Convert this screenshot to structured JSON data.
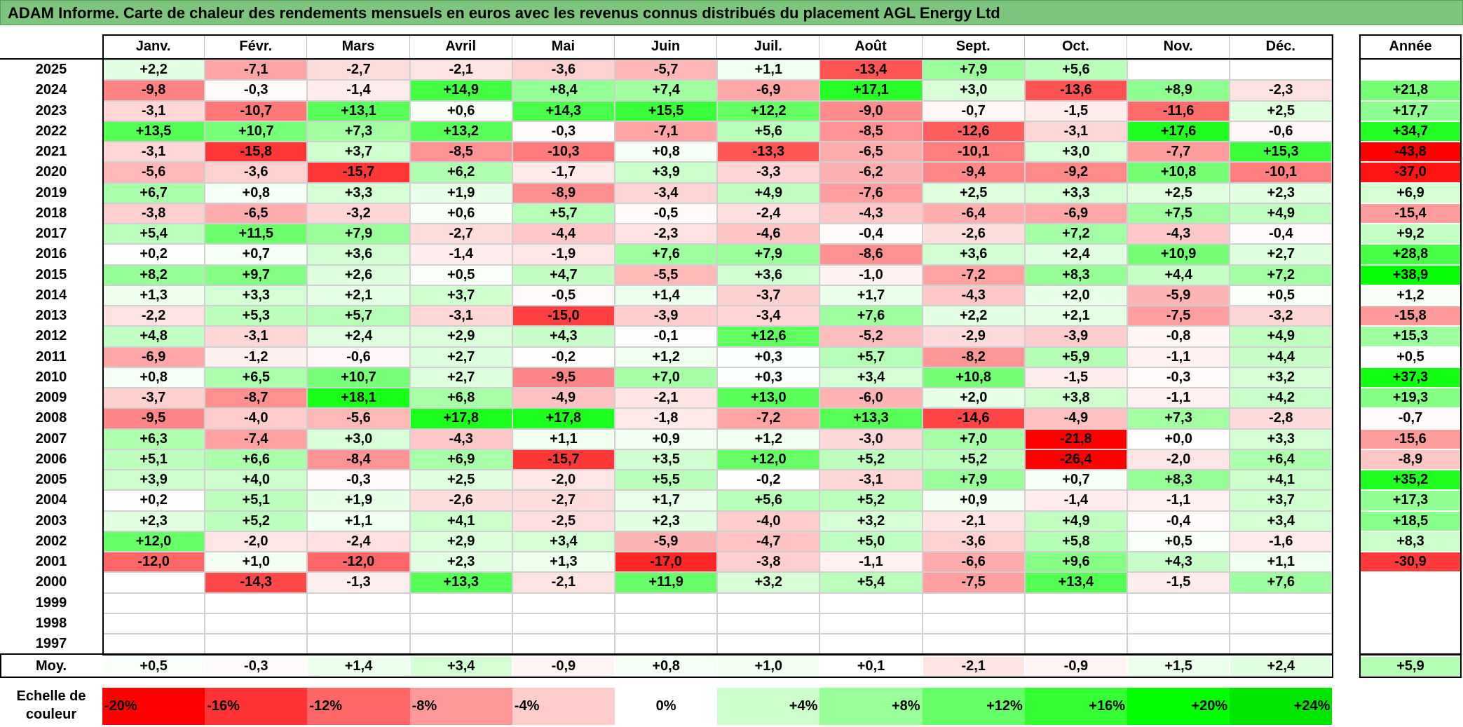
{
  "title": "ADAM Informe. Carte de chaleur des rendements mensuels en euros avec les revenus connus distribués du placement AGL Energy Ltd",
  "chart_data": {
    "type": "heatmap",
    "title": "ADAM Informe. Carte de chaleur des rendements mensuels en euros avec les revenus connus distribués du placement AGL Energy Ltd",
    "months": [
      "Janv.",
      "Févr.",
      "Mars",
      "Avril",
      "Mai",
      "Juin",
      "Juil.",
      "Août",
      "Sept.",
      "Oct.",
      "Nov.",
      "Déc."
    ],
    "year_header": "Année",
    "years": [
      2025,
      2024,
      2023,
      2022,
      2021,
      2020,
      2019,
      2018,
      2017,
      2016,
      2015,
      2014,
      2013,
      2012,
      2011,
      2010,
      2009,
      2008,
      2007,
      2006,
      2005,
      2004,
      2003,
      2002,
      2001,
      2000,
      1999,
      1998,
      1997
    ],
    "values": [
      [
        2.2,
        -7.1,
        -2.7,
        -2.1,
        -3.6,
        -5.7,
        1.1,
        -13.4,
        7.9,
        5.6,
        null,
        null
      ],
      [
        -9.8,
        -0.3,
        -1.4,
        14.9,
        8.4,
        7.4,
        -6.9,
        17.1,
        3.0,
        -13.6,
        8.9,
        -2.3
      ],
      [
        -3.1,
        -10.7,
        13.1,
        0.6,
        14.3,
        15.5,
        12.2,
        -9.0,
        -0.7,
        -1.5,
        -11.6,
        2.5
      ],
      [
        13.5,
        10.7,
        7.3,
        13.2,
        -0.3,
        -7.1,
        5.6,
        -8.5,
        -12.6,
        -3.1,
        17.6,
        -0.6
      ],
      [
        -3.1,
        -15.8,
        3.7,
        -8.5,
        -10.3,
        0.8,
        -13.3,
        -6.5,
        -10.1,
        3.0,
        -7.7,
        15.3
      ],
      [
        -5.6,
        -3.6,
        -15.7,
        6.2,
        -1.7,
        3.9,
        -3.3,
        -6.2,
        -9.4,
        -9.2,
        10.8,
        -10.1
      ],
      [
        6.7,
        0.8,
        3.3,
        1.9,
        -8.9,
        -3.4,
        4.9,
        -7.6,
        2.5,
        3.3,
        2.5,
        2.3
      ],
      [
        -3.8,
        -6.5,
        -3.2,
        0.6,
        5.7,
        -0.5,
        -2.4,
        -4.3,
        -6.4,
        -6.9,
        7.5,
        4.9
      ],
      [
        5.4,
        11.5,
        7.9,
        -2.7,
        -4.4,
        -2.3,
        -4.6,
        -0.4,
        -2.6,
        7.2,
        -4.3,
        -0.4
      ],
      [
        0.2,
        0.7,
        3.6,
        -1.4,
        -1.9,
        7.6,
        7.9,
        -8.6,
        3.6,
        2.4,
        10.9,
        2.7
      ],
      [
        8.2,
        9.7,
        2.6,
        0.5,
        4.7,
        -5.5,
        3.6,
        -1.0,
        -7.2,
        8.3,
        4.4,
        7.2
      ],
      [
        1.3,
        3.3,
        2.1,
        3.7,
        -0.5,
        1.4,
        -3.7,
        1.7,
        -4.3,
        2.0,
        -5.9,
        0.5
      ],
      [
        -2.2,
        5.3,
        5.7,
        -3.1,
        -15.0,
        -3.9,
        -3.4,
        7.6,
        2.2,
        2.1,
        -7.5,
        -3.2
      ],
      [
        4.8,
        -3.1,
        2.4,
        2.9,
        4.3,
        -0.1,
        12.6,
        -5.2,
        -2.9,
        -3.9,
        -0.8,
        4.9
      ],
      [
        -6.9,
        -1.2,
        -0.6,
        2.7,
        -0.2,
        1.2,
        0.3,
        5.7,
        -8.2,
        5.9,
        -1.1,
        4.4
      ],
      [
        0.8,
        6.5,
        10.7,
        2.7,
        -9.5,
        7.0,
        0.3,
        3.4,
        10.8,
        -1.5,
        -0.3,
        3.2
      ],
      [
        -3.7,
        -8.7,
        18.1,
        6.8,
        -4.9,
        -2.1,
        13.0,
        -6.0,
        2.0,
        3.8,
        -1.1,
        4.2
      ],
      [
        -9.5,
        -4.0,
        -5.6,
        17.8,
        17.8,
        -1.8,
        -7.2,
        13.3,
        -14.6,
        -4.9,
        7.3,
        -2.8
      ],
      [
        6.3,
        -7.4,
        3.0,
        -4.3,
        1.1,
        0.9,
        1.2,
        -3.0,
        7.0,
        -21.8,
        0.0,
        3.3
      ],
      [
        5.1,
        6.6,
        -8.4,
        6.9,
        -15.7,
        3.5,
        12.0,
        5.2,
        5.2,
        -26.4,
        -2.0,
        6.4
      ],
      [
        3.9,
        4.0,
        -0.3,
        2.5,
        -2.0,
        5.5,
        -0.2,
        -3.1,
        7.9,
        0.7,
        8.3,
        4.1
      ],
      [
        0.2,
        5.1,
        1.9,
        -2.6,
        -2.7,
        1.7,
        5.6,
        5.2,
        0.9,
        -1.4,
        -1.1,
        3.7
      ],
      [
        2.3,
        5.2,
        1.1,
        4.1,
        -2.5,
        2.3,
        -4.0,
        3.2,
        -2.1,
        4.9,
        -0.4,
        3.4
      ],
      [
        12.0,
        -2.0,
        -2.4,
        2.9,
        3.4,
        -5.9,
        -4.7,
        5.0,
        -3.6,
        5.8,
        0.5,
        -1.6
      ],
      [
        -12.0,
        1.0,
        -12.0,
        2.3,
        1.3,
        -17.0,
        -3.8,
        -1.1,
        -6.6,
        9.6,
        4.3,
        1.1
      ],
      [
        null,
        -14.3,
        -1.3,
        13.3,
        -2.1,
        11.9,
        3.2,
        5.4,
        -7.5,
        13.4,
        -1.5,
        7.6
      ],
      [
        null,
        null,
        null,
        null,
        null,
        null,
        null,
        null,
        null,
        null,
        null,
        null
      ],
      [
        null,
        null,
        null,
        null,
        null,
        null,
        null,
        null,
        null,
        null,
        null,
        null
      ],
      [
        null,
        null,
        null,
        null,
        null,
        null,
        null,
        null,
        null,
        null,
        null,
        null
      ]
    ],
    "annual": [
      null,
      21.8,
      17.7,
      34.7,
      -43.8,
      -37.0,
      6.9,
      -15.4,
      9.2,
      28.8,
      38.9,
      1.2,
      -15.8,
      15.3,
      0.5,
      37.3,
      19.3,
      -0.7,
      -15.6,
      -8.9,
      35.2,
      17.3,
      18.5,
      8.3,
      -30.9,
      null,
      null,
      null,
      null
    ],
    "average_label": "Moy.",
    "average": [
      0.5,
      -0.3,
      1.4,
      3.4,
      -0.9,
      0.8,
      1.0,
      0.1,
      -2.1,
      -0.9,
      1.5,
      2.4
    ],
    "average_annual": 5.9,
    "scale_label": "Echelle de couleur",
    "scale": [
      {
        "label": "-20%",
        "value": -20,
        "color": "#ff0000"
      },
      {
        "label": "-16%",
        "value": -16,
        "color": "#ff3333"
      },
      {
        "label": "-12%",
        "value": -12,
        "color": "#ff6666"
      },
      {
        "label": "-8%",
        "value": -8,
        "color": "#ff9999"
      },
      {
        "label": "-4%",
        "value": -4,
        "color": "#ffcccc"
      },
      {
        "label": "0%",
        "value": 0,
        "color": "#ffffff"
      },
      {
        "label": "+4%",
        "value": 4,
        "color": "#ccffcc"
      },
      {
        "label": "+8%",
        "value": 8,
        "color": "#99ff99"
      },
      {
        "label": "+12%",
        "value": 12,
        "color": "#66ff66"
      },
      {
        "label": "+16%",
        "value": 16,
        "color": "#33ff33"
      },
      {
        "label": "+20%",
        "value": 20,
        "color": "#00ff00"
      },
      {
        "label": "+24%",
        "value": 24,
        "color": "#00e600"
      }
    ]
  }
}
